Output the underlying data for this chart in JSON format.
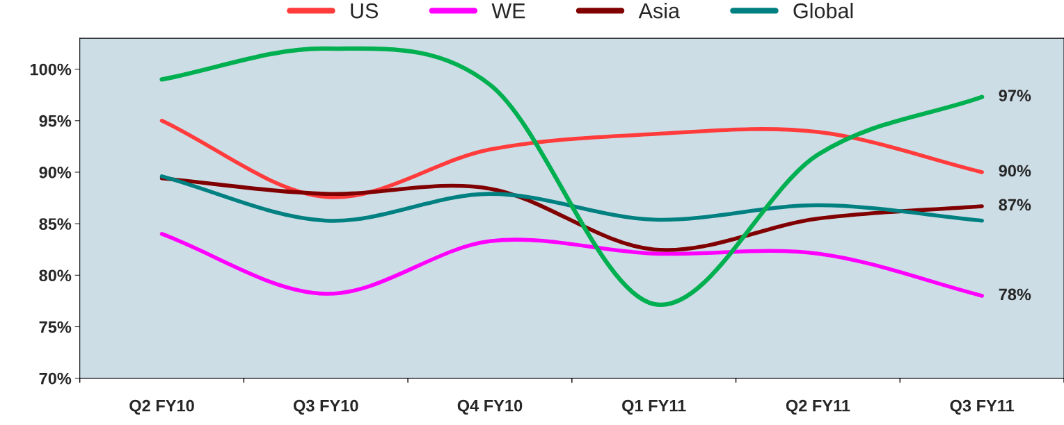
{
  "chart_data": {
    "type": "line",
    "categories": [
      "Q2 FY10",
      "Q3 FY10",
      "Q4 FY10",
      "Q1 FY11",
      "Q2 FY11",
      "Q3 FY11"
    ],
    "series": [
      {
        "name": "US",
        "color": "#ff3b3b",
        "values": [
          95,
          87.6,
          92.2,
          93.7,
          93.9,
          90
        ],
        "value_labels": [
          null,
          null,
          null,
          null,
          null,
          "90%"
        ]
      },
      {
        "name": "WE",
        "color": "#ff00ff",
        "values": [
          84,
          78.2,
          83.3,
          82.1,
          82.1,
          78
        ],
        "value_labels": [
          null,
          null,
          null,
          null,
          null,
          "78%"
        ]
      },
      {
        "name": "Asia",
        "color": "#800000",
        "values": [
          89.4,
          87.9,
          88.4,
          82.5,
          85.5,
          86.7
        ],
        "value_labels": [
          null,
          null,
          null,
          null,
          null,
          "87%"
        ]
      },
      {
        "name": "Global",
        "color": "#008080",
        "values": [
          89.6,
          85.3,
          87.9,
          85.4,
          86.8,
          85.3
        ]
      },
      {
        "color": "#00b050",
        "values": [
          99,
          102,
          98.5,
          77.2,
          91.7,
          97.3
        ],
        "value_labels": [
          null,
          null,
          null,
          null,
          null,
          "97%"
        ]
      }
    ],
    "ylim": [
      70,
      103
    ],
    "yticks": [
      {
        "value": 70,
        "label": "70%"
      },
      {
        "value": 75,
        "label": "75%"
      },
      {
        "value": 80,
        "label": "80%"
      },
      {
        "value": 85,
        "label": "85%"
      },
      {
        "value": 90,
        "label": "90%"
      },
      {
        "value": 95,
        "label": "95%"
      },
      {
        "value": 100,
        "label": "100%"
      }
    ],
    "grid": false,
    "legend": "top",
    "marker": "none",
    "line_style": "solid"
  }
}
